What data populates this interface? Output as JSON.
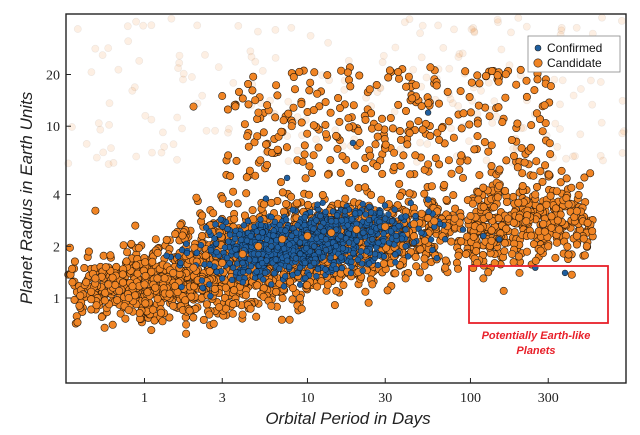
{
  "colors": {
    "confirmed": "#1f5fa0",
    "candidate": "#f08424",
    "annotation": "#e8202a",
    "frame": "#222222"
  },
  "chart_data": {
    "type": "scatter",
    "xlabel": "Orbital Period in Days",
    "ylabel": "Planet Radius in Earth Units",
    "x_scale": "log",
    "y_scale": "log",
    "xlim": [
      0.33,
      900
    ],
    "ylim": [
      0.32,
      45
    ],
    "x_ticks": [
      1,
      3,
      10,
      30,
      100,
      300
    ],
    "x_tick_labels": [
      "1",
      "3",
      "10",
      "30",
      "100",
      "300"
    ],
    "y_ticks": [
      1,
      2,
      4,
      10,
      20
    ],
    "y_tick_labels": [
      "1",
      "2",
      "4",
      "10",
      "20"
    ],
    "grid": false,
    "legend": {
      "placement": "top-right",
      "entries": [
        "Confirmed",
        "Candidate"
      ]
    },
    "series": [
      {
        "name": "Confirmed",
        "color": "#1f5fa0",
        "approx_count": 900,
        "x": [
          4,
          5,
          6,
          7,
          8,
          9,
          10,
          11,
          12,
          13,
          14,
          15,
          16,
          18,
          20,
          22,
          25,
          28,
          30,
          35,
          40,
          45,
          50,
          60,
          70,
          3.5,
          5.5,
          8.5,
          12,
          17,
          24,
          33,
          46,
          65,
          90,
          120,
          150,
          3,
          2.5,
          9,
          11,
          26,
          40,
          13,
          6,
          7.5,
          19,
          55,
          250,
          380
        ],
        "y": [
          1.6,
          1.8,
          2.0,
          2.2,
          2.3,
          2.1,
          2.4,
          2.0,
          2.6,
          2.2,
          2.8,
          2.5,
          2.3,
          2.1,
          2.7,
          2.4,
          2.2,
          2.6,
          2.9,
          2.3,
          2.5,
          2.1,
          2.4,
          2.6,
          2.2,
          1.5,
          1.4,
          1.7,
          3.0,
          3.2,
          3.4,
          2.8,
          3.0,
          2.7,
          2.5,
          2.3,
          2.2,
          1.3,
          1.2,
          1.5,
          1.6,
          1.8,
          2.0,
          1.9,
          1.2,
          5.0,
          8.0,
          12.0,
          1.5,
          1.4
        ]
      },
      {
        "name": "Candidate",
        "color": "#f08424",
        "approx_count": 3000,
        "x": [
          0.5,
          0.6,
          0.7,
          0.8,
          1.0,
          1.2,
          1.5,
          2,
          3,
          4,
          5,
          7,
          10,
          14,
          20,
          30,
          45,
          60,
          80,
          100,
          130,
          170,
          220,
          280,
          350,
          450,
          2,
          3,
          5,
          8,
          13,
          21,
          34,
          55,
          90,
          150,
          250,
          400,
          1.5,
          2.5,
          4,
          6,
          9,
          15,
          25,
          40,
          70,
          110,
          180,
          300,
          0.8,
          1.8,
          120,
          160,
          200,
          450
        ],
        "y": [
          1.3,
          1.2,
          1.1,
          1.0,
          1.2,
          1.3,
          1.4,
          1.5,
          1.6,
          1.8,
          2.0,
          2.2,
          2.3,
          2.4,
          2.5,
          2.6,
          2.7,
          2.8,
          2.9,
          3.0,
          3.0,
          2.9,
          2.8,
          2.7,
          2.5,
          2.3,
          13,
          15,
          12,
          10,
          9,
          8,
          7,
          6,
          5,
          4.5,
          4,
          3.5,
          0.9,
          0.8,
          0.8,
          0.9,
          1.0,
          1.1,
          1.2,
          1.3,
          1.5,
          1.6,
          1.8,
          2.0,
          0.85,
          0.7,
          1.3,
          1.1,
          1.4,
          3.2
        ]
      }
    ],
    "annotations": [
      {
        "type": "rectangle",
        "label": "Potentially Earth-like Planets",
        "x_range": [
          100,
          700
        ],
        "y_range": [
          0.67,
          1.45
        ],
        "color": "#e8202a"
      }
    ]
  }
}
